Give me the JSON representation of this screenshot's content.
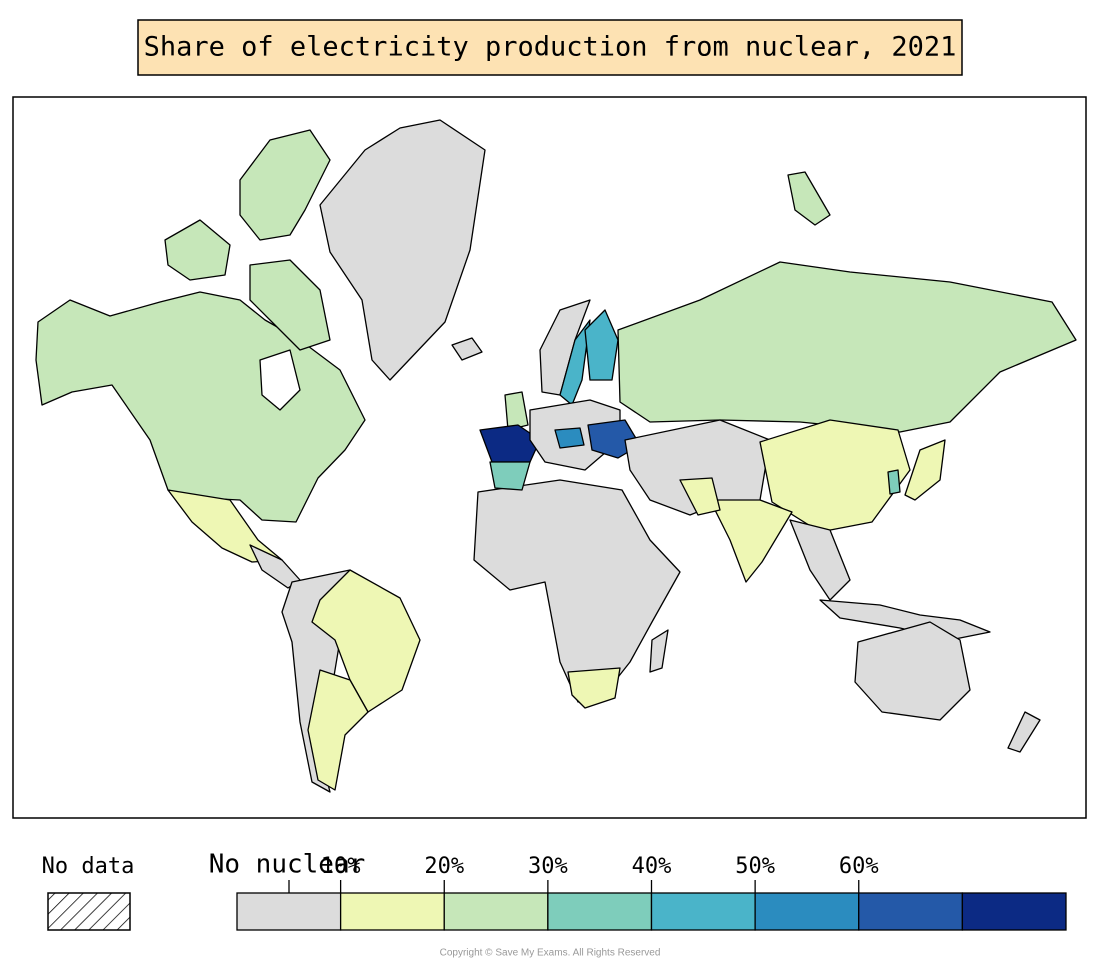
{
  "title": "Share of electricity production from nuclear, 2021",
  "legend": {
    "no_data": "No data",
    "no_nuclear": "No nuclear",
    "ticks": [
      "10%",
      "20%",
      "30%",
      "40%",
      "50%",
      "60%"
    ],
    "colors": [
      "#dcdcdc",
      "#eef7b4",
      "#c6e7b9",
      "#7ecdbb",
      "#4ab4c9",
      "#2b8cbf",
      "#2459a8",
      "#0c2a84"
    ]
  },
  "copyright": "Copyright © Save My Exams. All Rights Reserved"
}
